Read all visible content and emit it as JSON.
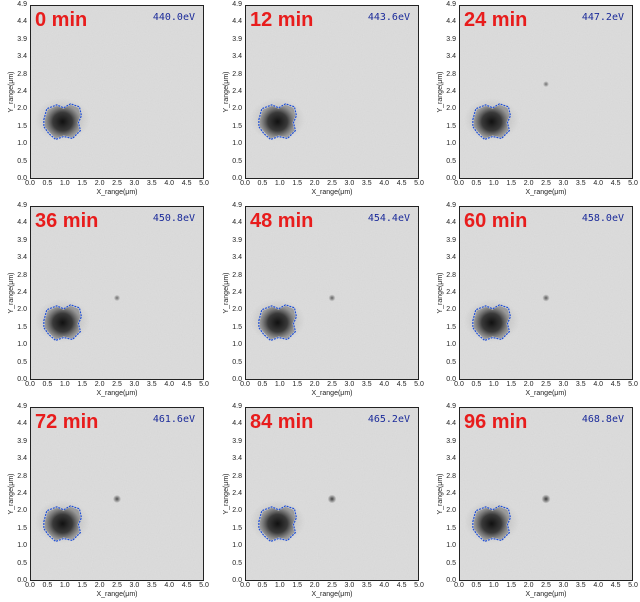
{
  "axes": {
    "xlabel": "X_range(μm)",
    "ylabel": "Y_range(μm)",
    "xticks": [
      "0.0",
      "0.5",
      "1.0",
      "1.5",
      "2.0",
      "2.5",
      "3.0",
      "3.5",
      "4.0",
      "4.5",
      "5.0"
    ],
    "yticks": [
      "4.9",
      "4.4",
      "3.9",
      "3.4",
      "2.8",
      "2.4",
      "2.0",
      "1.5",
      "1.0",
      "0.5",
      "0.0"
    ]
  },
  "colors": {
    "time_label": "#e81c1c",
    "energy_label": "#1a2a9a",
    "outline": "#1f4fd6"
  },
  "panels": [
    {
      "time": "0 min",
      "energy": "440.0eV",
      "spot": false,
      "spot_level": 0
    },
    {
      "time": "12 min",
      "energy": "443.6eV",
      "spot": false,
      "spot_level": 0
    },
    {
      "time": "24 min",
      "energy": "447.2eV",
      "spot": true,
      "spot_level": 0.35
    },
    {
      "time": "36 min",
      "energy": "450.8eV",
      "spot": true,
      "spot_level": 0.4
    },
    {
      "time": "48 min",
      "energy": "454.4eV",
      "spot": true,
      "spot_level": 0.5
    },
    {
      "time": "60 min",
      "energy": "458.0eV",
      "spot": true,
      "spot_level": 0.55
    },
    {
      "time": "72 min",
      "energy": "461.6eV",
      "spot": true,
      "spot_level": 0.7
    },
    {
      "time": "84 min",
      "energy": "465.2eV",
      "spot": true,
      "spot_level": 0.8
    },
    {
      "time": "96 min",
      "energy": "468.8eV",
      "spot": true,
      "spot_level": 0.85
    }
  ]
}
